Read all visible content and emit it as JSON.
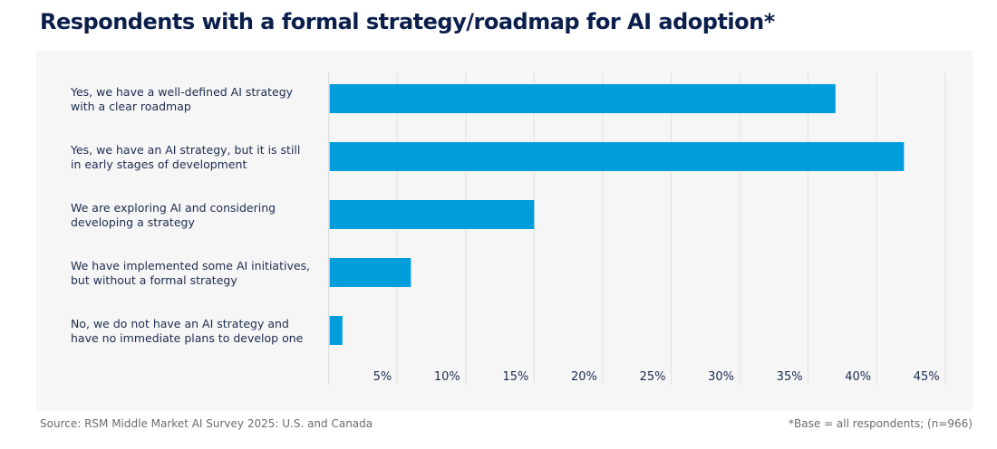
{
  "chart_data": {
    "type": "bar",
    "orientation": "horizontal",
    "title": "Respondents with a formal strategy/roadmap for AI adoption*",
    "categories": [
      [
        "Yes, we have a well-defined AI strategy",
        "with a clear roadmap"
      ],
      [
        "Yes, we have an AI strategy, but it is still",
        "in early stages of development"
      ],
      [
        "We are exploring AI and considering",
        "developing a strategy"
      ],
      [
        "We have implemented some AI initiatives,",
        "but without a formal strategy"
      ],
      [
        "No, we do not have an AI strategy and",
        "have no immediate plans to develop one"
      ]
    ],
    "values": [
      37,
      42,
      15,
      6,
      1
    ],
    "unit": "%",
    "xlim": [
      0,
      45
    ],
    "ticks": [
      5,
      10,
      15,
      20,
      25,
      30,
      35,
      40,
      45
    ],
    "tick_labels": [
      "5%",
      "10%",
      "15%",
      "20%",
      "25%",
      "30%",
      "35%",
      "40%",
      "45%"
    ],
    "grid": "vertical",
    "bar_color": "#009ddc",
    "title_color": "#0b1f4d"
  },
  "footer": {
    "source": "Source: RSM Middle Market AI Survey 2025: U.S. and Canada",
    "base_note": "*Base = all respondents; (n=966)"
  }
}
